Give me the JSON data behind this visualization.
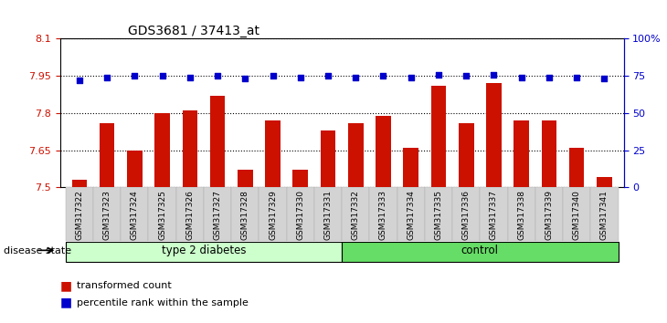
{
  "title": "GDS3681 / 37413_at",
  "samples": [
    "GSM317322",
    "GSM317323",
    "GSM317324",
    "GSM317325",
    "GSM317326",
    "GSM317327",
    "GSM317328",
    "GSM317329",
    "GSM317330",
    "GSM317331",
    "GSM317332",
    "GSM317333",
    "GSM317334",
    "GSM317335",
    "GSM317336",
    "GSM317337",
    "GSM317338",
    "GSM317339",
    "GSM317340",
    "GSM317341"
  ],
  "bar_values": [
    7.53,
    7.76,
    7.65,
    7.8,
    7.81,
    7.87,
    7.57,
    7.77,
    7.57,
    7.73,
    7.76,
    7.79,
    7.66,
    7.91,
    7.76,
    7.92,
    7.77,
    7.77,
    7.66,
    7.54
  ],
  "percentile_values": [
    72,
    74,
    75,
    75,
    74,
    75,
    73,
    75,
    74,
    75,
    74,
    75,
    74,
    76,
    75,
    76,
    74,
    74,
    74,
    73
  ],
  "groups": [
    "type 2 diabetes",
    "type 2 diabetes",
    "type 2 diabetes",
    "type 2 diabetes",
    "type 2 diabetes",
    "type 2 diabetes",
    "type 2 diabetes",
    "type 2 diabetes",
    "type 2 diabetes",
    "type 2 diabetes",
    "control",
    "control",
    "control",
    "control",
    "control",
    "control",
    "control",
    "control",
    "control",
    "control"
  ],
  "ylim_left": [
    7.5,
    8.1
  ],
  "ylim_right": [
    0,
    100
  ],
  "yticks_left": [
    7.5,
    7.65,
    7.8,
    7.95,
    8.1
  ],
  "yticks_right": [
    0,
    25,
    50,
    75,
    100
  ],
  "ytick_labels_left": [
    "7.5",
    "7.65",
    "7.8",
    "7.95",
    "8.1"
  ],
  "ytick_labels_right": [
    "0",
    "25",
    "50",
    "75",
    "100%"
  ],
  "bar_color": "#cc1100",
  "dot_color": "#0000cc",
  "grid_color": "#000000",
  "bg_color_plot": "#ffffff",
  "group1_color": "#ccffcc",
  "group2_color": "#66dd66",
  "label_bar": "transformed count",
  "label_dot": "percentile rank within the sample",
  "group_label": "disease state",
  "title_fontsize": 10,
  "tick_label_fontsize": 6.5,
  "group_fontsize": 8.5,
  "legend_fontsize": 8
}
